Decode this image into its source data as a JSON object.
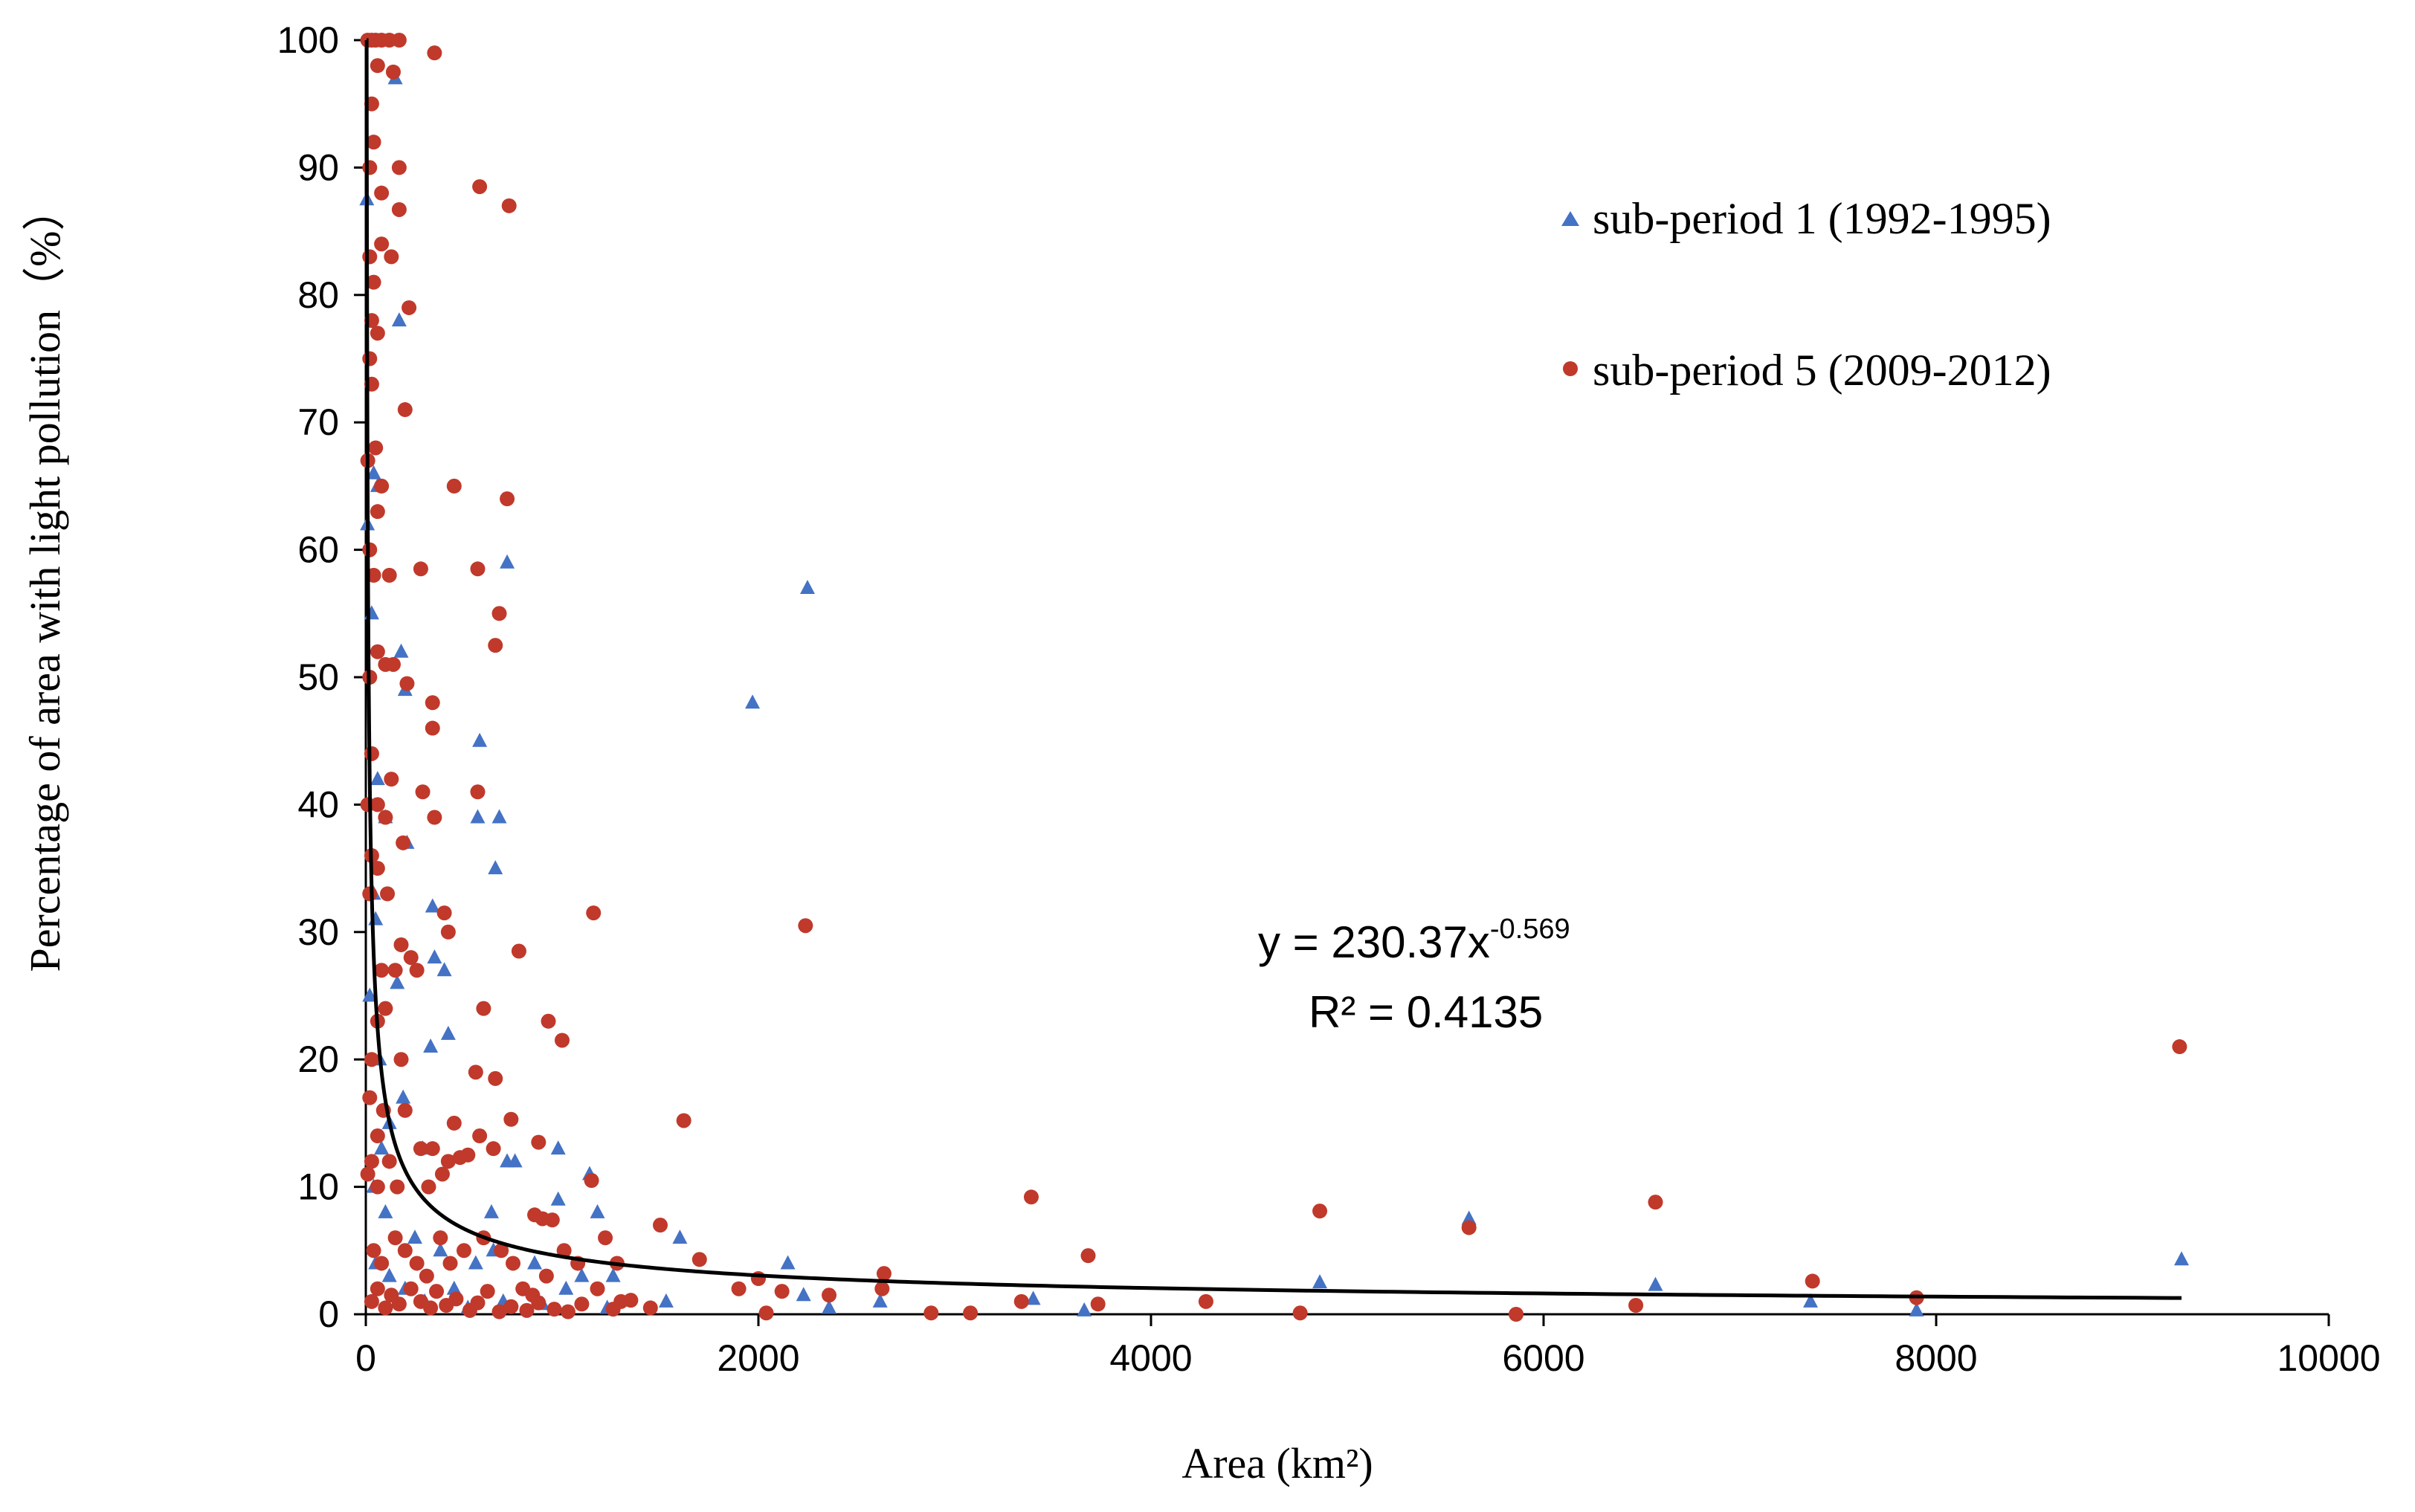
{
  "chart_data": {
    "type": "scatter",
    "title": "",
    "xlabel": "Area (km²)",
    "ylabel": "Percentage of area with light pollution（%）",
    "xlim": [
      0,
      10000
    ],
    "ylim": [
      0,
      100
    ],
    "x_ticks": [
      "0",
      "2000",
      "4000",
      "6000",
      "8000",
      "10000"
    ],
    "y_ticks": [
      "0",
      "10",
      "20",
      "30",
      "40",
      "50",
      "60",
      "70",
      "80",
      "90",
      "100"
    ],
    "grid": false,
    "legend_position": "top-right",
    "series": [
      {
        "name": "sub-period 1 (1992-1995)",
        "marker": "triangle",
        "color": "#4472C4",
        "points": [
          [
            5,
            87.5
          ],
          [
            8,
            62
          ],
          [
            30,
            55
          ],
          [
            40,
            66
          ],
          [
            60,
            65
          ],
          [
            150,
            97
          ],
          [
            170,
            78
          ],
          [
            720,
            59
          ],
          [
            180,
            52
          ],
          [
            200,
            49
          ],
          [
            580,
            45
          ],
          [
            60,
            42
          ],
          [
            100,
            39
          ],
          [
            210,
            37
          ],
          [
            570,
            39
          ],
          [
            680,
            39
          ],
          [
            40,
            33
          ],
          [
            50,
            31
          ],
          [
            340,
            32
          ],
          [
            350,
            28
          ],
          [
            400,
            27
          ],
          [
            660,
            35
          ],
          [
            160,
            26
          ],
          [
            330,
            21
          ],
          [
            420,
            22
          ],
          [
            190,
            17
          ],
          [
            120,
            15
          ],
          [
            80,
            13
          ],
          [
            290,
            13
          ],
          [
            760,
            12
          ],
          [
            980,
            13
          ],
          [
            1140,
            11
          ],
          [
            980,
            9
          ],
          [
            1180,
            8
          ],
          [
            640,
            8
          ],
          [
            720,
            12
          ],
          [
            100,
            8
          ],
          [
            250,
            6
          ],
          [
            380,
            5
          ],
          [
            560,
            4
          ],
          [
            650,
            5
          ],
          [
            860,
            4
          ],
          [
            1100,
            3
          ],
          [
            1260,
            3
          ],
          [
            1530,
            1
          ],
          [
            1600,
            6
          ],
          [
            1970,
            48
          ],
          [
            2150,
            4
          ],
          [
            2250,
            57
          ],
          [
            2360,
            0.5
          ],
          [
            2230,
            1.5
          ],
          [
            2620,
            1
          ],
          [
            3400,
            1.2
          ],
          [
            3660,
            0.3
          ],
          [
            4860,
            2.5
          ],
          [
            5620,
            7.5
          ],
          [
            6570,
            2.3
          ],
          [
            7360,
            1
          ],
          [
            7900,
            0.3
          ],
          [
            9250,
            4.3
          ],
          [
            50,
            4
          ],
          [
            120,
            3
          ],
          [
            200,
            2
          ],
          [
            300,
            1
          ],
          [
            450,
            2
          ],
          [
            520,
            0.5
          ],
          [
            700,
            1
          ],
          [
            900,
            0.8
          ],
          [
            1020,
            2
          ],
          [
            1230,
            0.5
          ],
          [
            40,
            10
          ],
          [
            70,
            20
          ],
          [
            20,
            25
          ]
        ]
      },
      {
        "name": "sub-period 5 (2009-2012)",
        "marker": "circle",
        "color": "#C0392B",
        "points": [
          [
            10,
            100
          ],
          [
            30,
            100
          ],
          [
            50,
            100
          ],
          [
            80,
            100
          ],
          [
            120,
            100
          ],
          [
            170,
            100
          ],
          [
            350,
            99
          ],
          [
            60,
            98
          ],
          [
            140,
            97.5
          ],
          [
            30,
            95
          ],
          [
            40,
            92
          ],
          [
            20,
            90
          ],
          [
            170,
            90
          ],
          [
            80,
            88
          ],
          [
            580,
            88.5
          ],
          [
            730,
            87
          ],
          [
            170,
            86.7
          ],
          [
            20,
            83
          ],
          [
            80,
            84
          ],
          [
            130,
            83
          ],
          [
            40,
            81
          ],
          [
            220,
            79
          ],
          [
            30,
            78
          ],
          [
            60,
            77
          ],
          [
            20,
            75
          ],
          [
            30,
            73
          ],
          [
            200,
            71
          ],
          [
            50,
            68
          ],
          [
            10,
            67
          ],
          [
            80,
            65
          ],
          [
            450,
            65
          ],
          [
            720,
            64
          ],
          [
            60,
            63
          ],
          [
            20,
            60
          ],
          [
            40,
            58
          ],
          [
            120,
            58
          ],
          [
            280,
            58.5
          ],
          [
            570,
            58.5
          ],
          [
            680,
            55
          ],
          [
            660,
            52.5
          ],
          [
            60,
            52
          ],
          [
            100,
            51
          ],
          [
            140,
            51
          ],
          [
            20,
            50
          ],
          [
            210,
            49.5
          ],
          [
            340,
            48
          ],
          [
            340,
            46
          ],
          [
            30,
            44
          ],
          [
            130,
            42
          ],
          [
            570,
            41
          ],
          [
            10,
            40
          ],
          [
            60,
            40
          ],
          [
            100,
            39
          ],
          [
            290,
            41
          ],
          [
            350,
            39
          ],
          [
            190,
            37
          ],
          [
            30,
            36
          ],
          [
            60,
            35
          ],
          [
            110,
            33
          ],
          [
            20,
            33
          ],
          [
            400,
            31.5
          ],
          [
            420,
            30
          ],
          [
            1160,
            31.5
          ],
          [
            2240,
            30.5
          ],
          [
            180,
            29
          ],
          [
            230,
            28
          ],
          [
            780,
            28.5
          ],
          [
            80,
            27
          ],
          [
            150,
            27
          ],
          [
            260,
            27
          ],
          [
            100,
            24
          ],
          [
            600,
            24
          ],
          [
            1000,
            21.5
          ],
          [
            930,
            23
          ],
          [
            60,
            23
          ],
          [
            30,
            20
          ],
          [
            180,
            20
          ],
          [
            560,
            19
          ],
          [
            660,
            18.5
          ],
          [
            9240,
            21
          ],
          [
            20,
            17
          ],
          [
            90,
            16
          ],
          [
            200,
            16
          ],
          [
            450,
            15
          ],
          [
            740,
            15.3
          ],
          [
            1620,
            15.2
          ],
          [
            60,
            14
          ],
          [
            280,
            13
          ],
          [
            340,
            13
          ],
          [
            580,
            14
          ],
          [
            880,
            13.5
          ],
          [
            30,
            12
          ],
          [
            120,
            12
          ],
          [
            420,
            12
          ],
          [
            480,
            12.3
          ],
          [
            520,
            12.5
          ],
          [
            650,
            13
          ],
          [
            1150,
            10.5
          ],
          [
            10,
            11
          ],
          [
            60,
            10
          ],
          [
            160,
            10
          ],
          [
            320,
            10
          ],
          [
            390,
            11
          ],
          [
            860,
            7.8
          ],
          [
            900,
            7.5
          ],
          [
            950,
            7.4
          ],
          [
            1500,
            7
          ],
          [
            1700,
            4.3
          ],
          [
            2000,
            2.8
          ],
          [
            2640,
            3.2
          ],
          [
            3390,
            9.2
          ],
          [
            3680,
            4.6
          ],
          [
            4860,
            8.1
          ],
          [
            5620,
            6.8
          ],
          [
            6570,
            8.8
          ],
          [
            7370,
            2.6
          ],
          [
            40,
            5
          ],
          [
            80,
            4
          ],
          [
            150,
            6
          ],
          [
            200,
            5
          ],
          [
            260,
            4
          ],
          [
            310,
            3
          ],
          [
            380,
            6
          ],
          [
            430,
            4
          ],
          [
            500,
            5
          ],
          [
            600,
            6
          ],
          [
            690,
            5
          ],
          [
            750,
            4
          ],
          [
            800,
            2
          ],
          [
            850,
            1.5
          ],
          [
            920,
            3
          ],
          [
            1010,
            5
          ],
          [
            1080,
            4
          ],
          [
            1180,
            2
          ],
          [
            1220,
            6
          ],
          [
            1280,
            4
          ],
          [
            1300,
            1
          ],
          [
            1350,
            1.1
          ],
          [
            1450,
            0.5
          ],
          [
            1900,
            2
          ],
          [
            2040,
            0.1
          ],
          [
            2120,
            1.8
          ],
          [
            2360,
            1.5
          ],
          [
            2630,
            2
          ],
          [
            2880,
            0.1
          ],
          [
            3080,
            0.1
          ],
          [
            3340,
            1
          ],
          [
            3730,
            0.8
          ],
          [
            4280,
            1
          ],
          [
            4760,
            0.1
          ],
          [
            5860,
            0
          ],
          [
            6470,
            0.7
          ],
          [
            7900,
            1.3
          ],
          [
            30,
            1
          ],
          [
            60,
            2
          ],
          [
            100,
            0.5
          ],
          [
            130,
            1.5
          ],
          [
            170,
            0.8
          ],
          [
            230,
            2
          ],
          [
            280,
            1
          ],
          [
            330,
            0.5
          ],
          [
            360,
            1.8
          ],
          [
            410,
            0.7
          ],
          [
            460,
            1.2
          ],
          [
            530,
            0.3
          ],
          [
            570,
            0.9
          ],
          [
            620,
            1.8
          ],
          [
            680,
            0.2
          ],
          [
            740,
            0.6
          ],
          [
            820,
            0.3
          ],
          [
            880,
            0.9
          ],
          [
            960,
            0.4
          ],
          [
            1030,
            0.2
          ],
          [
            1100,
            0.8
          ],
          [
            1260,
            0.4
          ]
        ]
      }
    ],
    "trendline": {
      "type": "power",
      "equation": "y = 230.37x",
      "exponent": "-0.569",
      "a": 230.37,
      "b": -0.569,
      "x_range": [
        4,
        9250
      ],
      "r_squared": "R² = 0.4135",
      "color": "#000000"
    }
  }
}
